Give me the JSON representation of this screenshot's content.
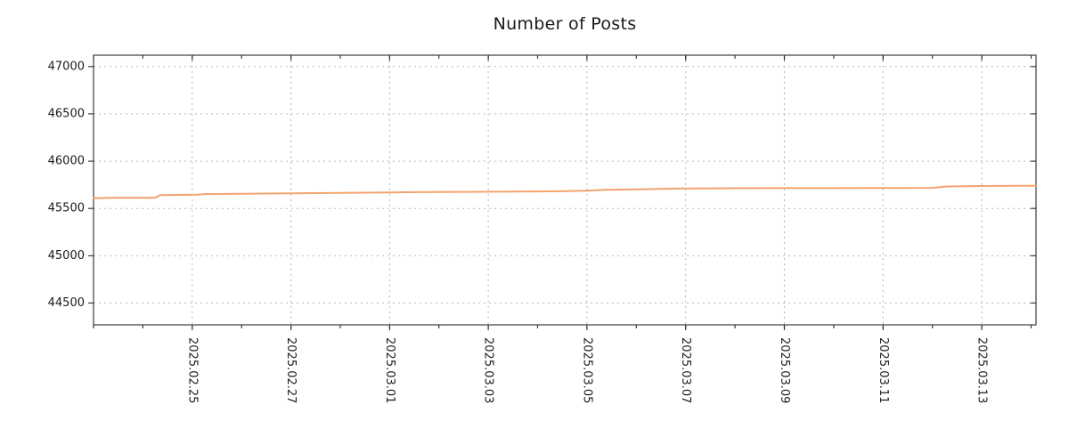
{
  "chart_data": {
    "type": "line",
    "title": "Number of Posts",
    "xlabel": "",
    "ylabel": "",
    "x_axis_kind": "dates",
    "xlim_days": [
      0,
      19.1
    ],
    "ylim": [
      44270,
      47120
    ],
    "y_ticks": [
      44500,
      45000,
      45500,
      46000,
      46500,
      47000
    ],
    "x_ticks": [
      {
        "day": 2,
        "label": "2025.02.25"
      },
      {
        "day": 4,
        "label": "2025.02.27"
      },
      {
        "day": 6,
        "label": "2025.03.01"
      },
      {
        "day": 8,
        "label": "2025.03.03"
      },
      {
        "day": 10,
        "label": "2025.03.05"
      },
      {
        "day": 12,
        "label": "2025.03.07"
      },
      {
        "day": 14,
        "label": "2025.03.09"
      },
      {
        "day": 16,
        "label": "2025.03.11"
      },
      {
        "day": 18,
        "label": "2025.03.13"
      }
    ],
    "x_minor_step_days": 1,
    "grid": true,
    "legend": "none",
    "series": [
      {
        "name": "Number of Posts",
        "color": "#f2a46e",
        "points": [
          [
            0,
            45608
          ],
          [
            0.4,
            45613
          ],
          [
            1.25,
            45613
          ],
          [
            1.35,
            45640
          ],
          [
            2.1,
            45646
          ],
          [
            2.25,
            45652
          ],
          [
            3,
            45655
          ],
          [
            4,
            45660
          ],
          [
            5,
            45665
          ],
          [
            6,
            45670
          ],
          [
            6.5,
            45672
          ],
          [
            7.5,
            45675
          ],
          [
            8.5,
            45678
          ],
          [
            9.5,
            45682
          ],
          [
            10,
            45688
          ],
          [
            10.4,
            45698
          ],
          [
            11,
            45702
          ],
          [
            11.6,
            45708
          ],
          [
            12.2,
            45712
          ],
          [
            13,
            45714
          ],
          [
            14,
            45715
          ],
          [
            15,
            45715
          ],
          [
            16,
            45716
          ],
          [
            17,
            45718
          ],
          [
            17.3,
            45733
          ],
          [
            18,
            45737
          ],
          [
            19.1,
            45740
          ]
        ]
      }
    ],
    "styles": {
      "line_width": 2,
      "grid_color": "#b8b8b8",
      "axis_color": "#3c3c3c",
      "text_color": "#1a1a1a",
      "background": "#ffffff"
    }
  }
}
